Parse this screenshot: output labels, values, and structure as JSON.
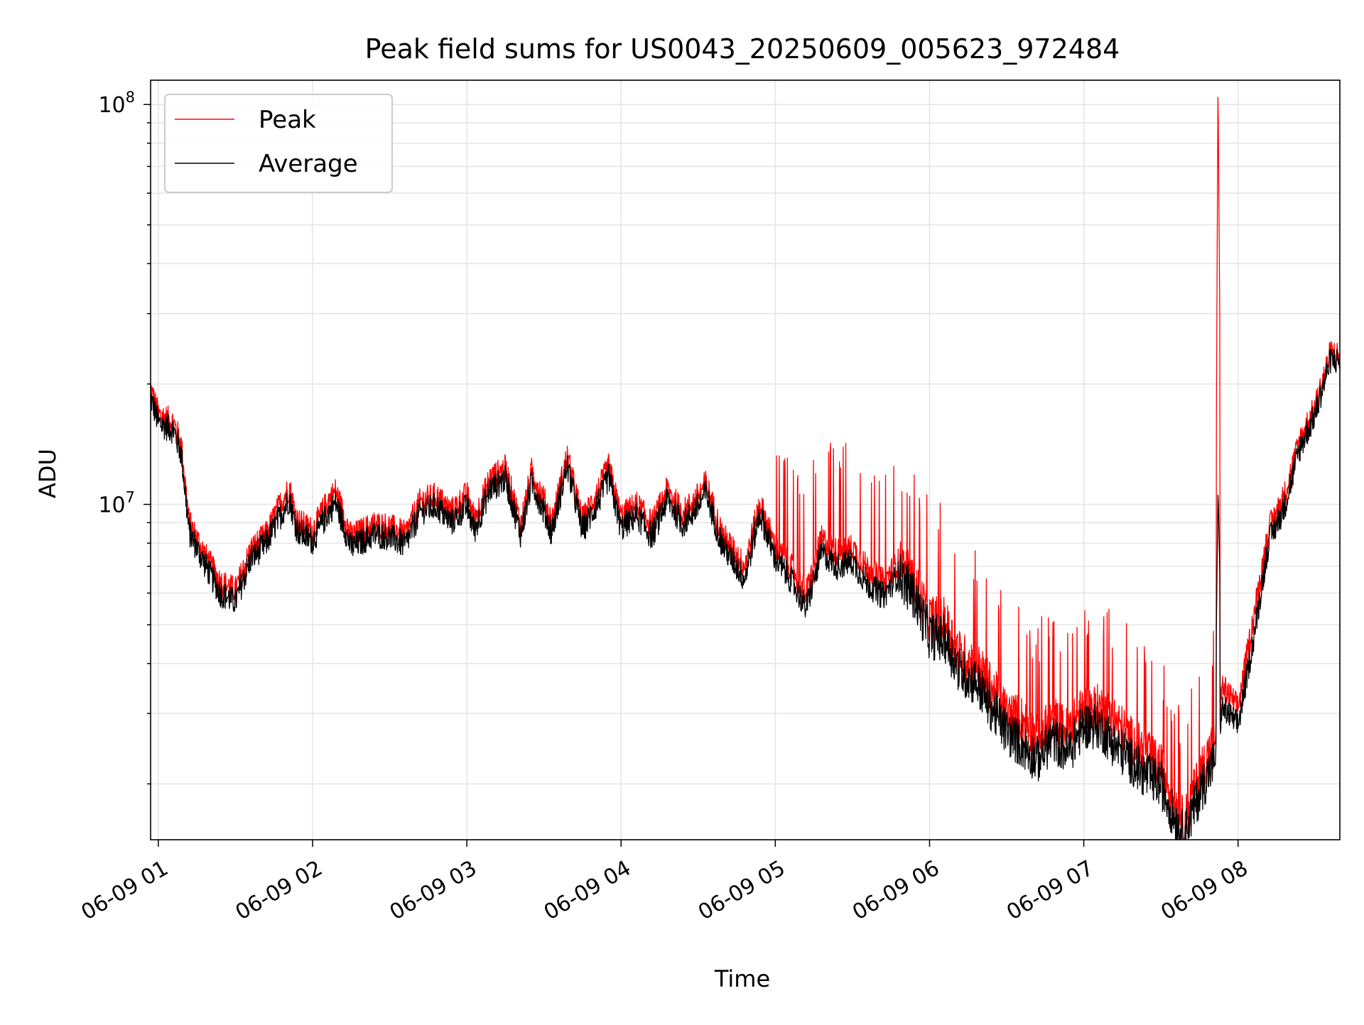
{
  "chart_data": {
    "type": "line",
    "title": "Peak field sums for US0043_20250609_005623_972484",
    "xlabel": "Time",
    "ylabel": "ADU",
    "yscale": "log",
    "grid": true,
    "legend_position": "top-left",
    "x_range_hours": [
      0.95,
      8.66
    ],
    "ylim": [
      1450000,
      115000000
    ],
    "x_ticks": [
      {
        "hour": 1,
        "label": "06-09 01"
      },
      {
        "hour": 2,
        "label": "06-09 02"
      },
      {
        "hour": 3,
        "label": "06-09 03"
      },
      {
        "hour": 4,
        "label": "06-09 04"
      },
      {
        "hour": 5,
        "label": "06-09 05"
      },
      {
        "hour": 6,
        "label": "06-09 06"
      },
      {
        "hour": 7,
        "label": "06-09 07"
      },
      {
        "hour": 8,
        "label": "06-09 08"
      }
    ],
    "y_ticks": [
      {
        "value": 10000000,
        "base": "10",
        "exp": "7"
      },
      {
        "value": 100000000,
        "base": "10",
        "exp": "8"
      }
    ],
    "series": [
      {
        "name": "Peak",
        "color": "#ff0000",
        "points": [
          [
            0.95,
            19500000
          ],
          [
            1.0,
            16800000
          ],
          [
            1.1,
            16000000
          ],
          [
            1.15,
            14000000
          ],
          [
            1.2,
            9000000
          ],
          [
            1.3,
            7500000
          ],
          [
            1.4,
            6400000
          ],
          [
            1.5,
            6100000
          ],
          [
            1.6,
            7700000
          ],
          [
            1.7,
            8400000
          ],
          [
            1.8,
            10200000
          ],
          [
            1.85,
            11000000
          ],
          [
            1.9,
            9100000
          ],
          [
            2.0,
            8600000
          ],
          [
            2.1,
            10200000
          ],
          [
            2.15,
            10800000
          ],
          [
            2.25,
            8300000
          ],
          [
            2.4,
            8900000
          ],
          [
            2.5,
            8800000
          ],
          [
            2.6,
            8400000
          ],
          [
            2.7,
            10200000
          ],
          [
            2.8,
            10500000
          ],
          [
            2.9,
            9600000
          ],
          [
            3.0,
            10600000
          ],
          [
            3.05,
            9200000
          ],
          [
            3.15,
            11600000
          ],
          [
            3.25,
            12300000
          ],
          [
            3.35,
            8900000
          ],
          [
            3.42,
            12100000
          ],
          [
            3.5,
            10300000
          ],
          [
            3.55,
            9000000
          ],
          [
            3.65,
            13200000
          ],
          [
            3.75,
            9100000
          ],
          [
            3.85,
            10800000
          ],
          [
            3.92,
            12400000
          ],
          [
            4.0,
            9300000
          ],
          [
            4.1,
            10000000
          ],
          [
            4.2,
            8900000
          ],
          [
            4.3,
            10900000
          ],
          [
            4.4,
            9500000
          ],
          [
            4.5,
            10500000
          ],
          [
            4.55,
            11300000
          ],
          [
            4.65,
            8500000
          ],
          [
            4.8,
            7000000
          ],
          [
            4.9,
            10100000
          ],
          [
            5.0,
            7800000
          ],
          [
            5.1,
            7000000
          ],
          [
            5.2,
            6000000
          ],
          [
            5.3,
            8200000
          ],
          [
            5.4,
            7600000
          ],
          [
            5.5,
            7800000
          ],
          [
            5.6,
            6900000
          ],
          [
            5.7,
            6400000
          ],
          [
            5.8,
            7200000
          ],
          [
            5.9,
            6400000
          ],
          [
            6.0,
            5200000
          ],
          [
            6.1,
            5100000
          ],
          [
            6.2,
            4200000
          ],
          [
            6.3,
            4000000
          ],
          [
            6.4,
            3500000
          ],
          [
            6.5,
            3000000
          ],
          [
            6.6,
            2900000
          ],
          [
            6.7,
            2600000
          ],
          [
            6.8,
            2900000
          ],
          [
            6.9,
            2700000
          ],
          [
            7.0,
            3100000
          ],
          [
            7.1,
            3100000
          ],
          [
            7.2,
            2900000
          ],
          [
            7.3,
            2600000
          ],
          [
            7.4,
            2400000
          ],
          [
            7.5,
            2200000
          ],
          [
            7.6,
            1750000
          ],
          [
            7.65,
            1600000
          ],
          [
            7.75,
            2100000
          ],
          [
            7.85,
            2600000
          ],
          [
            7.87,
            115000000
          ],
          [
            7.9,
            3500000
          ],
          [
            8.0,
            3100000
          ],
          [
            8.1,
            5200000
          ],
          [
            8.2,
            8700000
          ],
          [
            8.3,
            10500000
          ],
          [
            8.4,
            14500000
          ],
          [
            8.5,
            17500000
          ],
          [
            8.6,
            24000000
          ],
          [
            8.66,
            23500000
          ]
        ]
      },
      {
        "name": "Average",
        "color": "#000000",
        "points": [
          [
            0.95,
            18500000
          ],
          [
            1.0,
            16000000
          ],
          [
            1.1,
            15300000
          ],
          [
            1.15,
            13300000
          ],
          [
            1.2,
            8500000
          ],
          [
            1.3,
            7100000
          ],
          [
            1.4,
            6000000
          ],
          [
            1.5,
            5700000
          ],
          [
            1.6,
            7300000
          ],
          [
            1.7,
            8000000
          ],
          [
            1.8,
            9500000
          ],
          [
            1.85,
            10300000
          ],
          [
            1.9,
            8600000
          ],
          [
            2.0,
            8100000
          ],
          [
            2.1,
            9500000
          ],
          [
            2.15,
            10100000
          ],
          [
            2.25,
            7800000
          ],
          [
            2.4,
            8400000
          ],
          [
            2.5,
            8300000
          ],
          [
            2.6,
            7900000
          ],
          [
            2.7,
            9600000
          ],
          [
            2.8,
            9900000
          ],
          [
            2.9,
            9000000
          ],
          [
            3.0,
            9900000
          ],
          [
            3.05,
            8600000
          ],
          [
            3.15,
            10900000
          ],
          [
            3.25,
            11600000
          ],
          [
            3.35,
            8400000
          ],
          [
            3.42,
            11400000
          ],
          [
            3.5,
            9600000
          ],
          [
            3.55,
            8500000
          ],
          [
            3.65,
            12500000
          ],
          [
            3.75,
            8600000
          ],
          [
            3.85,
            10100000
          ],
          [
            3.92,
            11700000
          ],
          [
            4.0,
            8700000
          ],
          [
            4.1,
            9400000
          ],
          [
            4.2,
            8300000
          ],
          [
            4.3,
            10300000
          ],
          [
            4.4,
            8900000
          ],
          [
            4.5,
            9900000
          ],
          [
            4.55,
            10700000
          ],
          [
            4.65,
            8000000
          ],
          [
            4.8,
            6500000
          ],
          [
            4.9,
            9500000
          ],
          [
            5.0,
            7300000
          ],
          [
            5.1,
            6500000
          ],
          [
            5.2,
            5500000
          ],
          [
            5.3,
            7600000
          ],
          [
            5.4,
            7000000
          ],
          [
            5.5,
            7200000
          ],
          [
            5.6,
            6300000
          ],
          [
            5.7,
            5900000
          ],
          [
            5.8,
            6700000
          ],
          [
            5.9,
            5900000
          ],
          [
            6.0,
            4700000
          ],
          [
            6.1,
            4600000
          ],
          [
            6.2,
            3800000
          ],
          [
            6.3,
            3600000
          ],
          [
            6.4,
            3100000
          ],
          [
            6.5,
            2700000
          ],
          [
            6.6,
            2500000
          ],
          [
            6.7,
            2300000
          ],
          [
            6.8,
            2600000
          ],
          [
            6.9,
            2400000
          ],
          [
            7.0,
            2800000
          ],
          [
            7.1,
            2800000
          ],
          [
            7.2,
            2500000
          ],
          [
            7.3,
            2300000
          ],
          [
            7.4,
            2100000
          ],
          [
            7.5,
            2000000
          ],
          [
            7.6,
            1600000
          ],
          [
            7.65,
            1480000
          ],
          [
            7.75,
            1900000
          ],
          [
            7.85,
            2300000
          ],
          [
            7.87,
            11000000
          ],
          [
            7.9,
            3100000
          ],
          [
            8.0,
            2800000
          ],
          [
            8.1,
            4600000
          ],
          [
            8.2,
            8100000
          ],
          [
            8.3,
            9800000
          ],
          [
            8.4,
            13800000
          ],
          [
            8.5,
            16800000
          ],
          [
            8.6,
            23000000
          ],
          [
            8.66,
            22800000
          ]
        ]
      }
    ]
  }
}
